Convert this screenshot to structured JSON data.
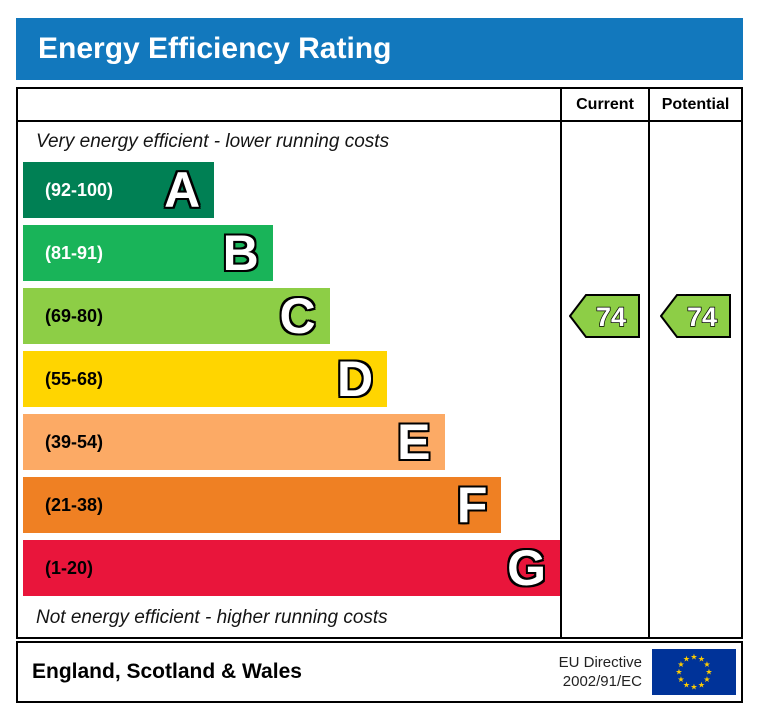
{
  "title": "Energy Efficiency Rating",
  "colors": {
    "title_bar": "#1278bd",
    "border": "#000000"
  },
  "table": {
    "current_header": "Current",
    "potential_header": "Potential"
  },
  "notes": {
    "top": "Very energy efficient - lower running costs",
    "bottom": "Not energy efficient - higher running costs"
  },
  "bands": [
    {
      "letter": "A",
      "range": "(92-100)",
      "min": 92,
      "max": 100,
      "color": "#008054",
      "range_text_color": "#ffffff",
      "width_pct": 35.6
    },
    {
      "letter": "B",
      "range": "(81-91)",
      "min": 81,
      "max": 91,
      "color": "#19b459",
      "range_text_color": "#ffffff",
      "width_pct": 46.5
    },
    {
      "letter": "C",
      "range": "(69-80)",
      "min": 69,
      "max": 80,
      "color": "#8dce46",
      "range_text_color": "#000000",
      "width_pct": 57.1
    },
    {
      "letter": "D",
      "range": "(55-68)",
      "min": 55,
      "max": 68,
      "color": "#ffd500",
      "range_text_color": "#000000",
      "width_pct": 67.8
    },
    {
      "letter": "E",
      "range": "(39-54)",
      "min": 39,
      "max": 54,
      "color": "#fcaa65",
      "range_text_color": "#000000",
      "width_pct": 78.5
    },
    {
      "letter": "F",
      "range": "(21-38)",
      "min": 21,
      "max": 38,
      "color": "#ef8023",
      "range_text_color": "#000000",
      "width_pct": 89.1
    },
    {
      "letter": "G",
      "range": "(1-20)",
      "min": 1,
      "max": 20,
      "color": "#e9153b",
      "range_text_color": "#000000",
      "width_pct": 100
    }
  ],
  "ratings": {
    "current": 74,
    "potential": 74,
    "arrow_color": "#8dce46",
    "value_text_color": "#ffffff"
  },
  "footer": {
    "region": "England, Scotland & Wales",
    "directive_line1": "EU Directive",
    "directive_line2": "2002/91/EC"
  },
  "eu_flag": {
    "background": "#003399",
    "star_color": "#ffcc00",
    "star_glyph": "★"
  },
  "chart_data": {
    "type": "bar",
    "orientation": "horizontal",
    "title": "Energy Efficiency Rating",
    "categories": [
      "A",
      "B",
      "C",
      "D",
      "E",
      "F",
      "G"
    ],
    "band_ranges": [
      "92-100",
      "81-91",
      "69-80",
      "55-68",
      "39-54",
      "21-38",
      "1-20"
    ],
    "band_colors": [
      "#008054",
      "#19b459",
      "#8dce46",
      "#ffd500",
      "#fcaa65",
      "#ef8023",
      "#e9153b"
    ],
    "bar_lengths_pct": [
      35.6,
      46.5,
      57.1,
      67.8,
      78.5,
      89.1,
      100
    ],
    "value_scale": [
      1,
      100
    ],
    "series": [
      {
        "name": "Current",
        "value": 74,
        "band": "C"
      },
      {
        "name": "Potential",
        "value": 74,
        "band": "C"
      }
    ],
    "top_annotation": "Very energy efficient - lower running costs",
    "bottom_annotation": "Not energy efficient - higher running costs",
    "region_label": "England, Scotland & Wales",
    "directive_label": "EU Directive 2002/91/EC"
  }
}
